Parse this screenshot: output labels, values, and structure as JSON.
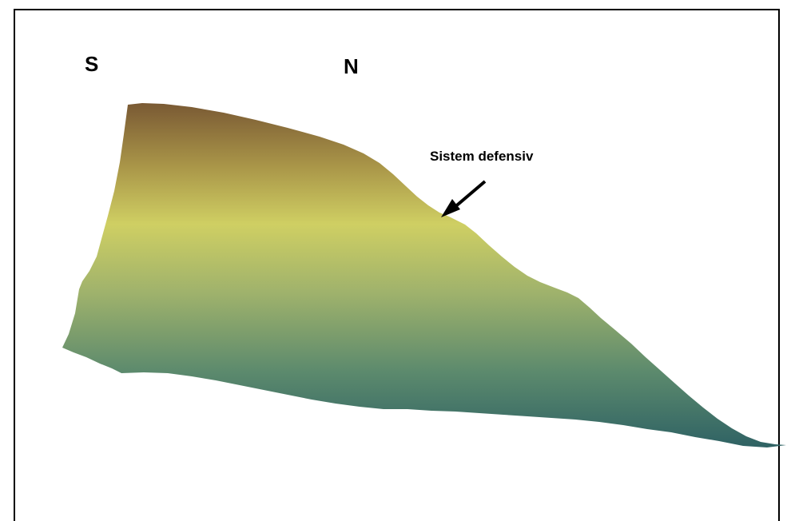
{
  "orientation": {
    "south_label": "S",
    "north_label": "N"
  },
  "annotation": {
    "text": "Sistem defensiv",
    "pointer": "arrow-pointing-down-left"
  },
  "terrain": {
    "gradient_colors": {
      "top": "#7a5a34",
      "upper": "#a99548",
      "ridge": "#cfcf63",
      "middle": "#9fb26c",
      "lower": "#5c8a6d",
      "bottom": "#2f6264"
    }
  },
  "colors": {
    "frame": "#000000",
    "background": "#ffffff",
    "text": "#000000"
  }
}
